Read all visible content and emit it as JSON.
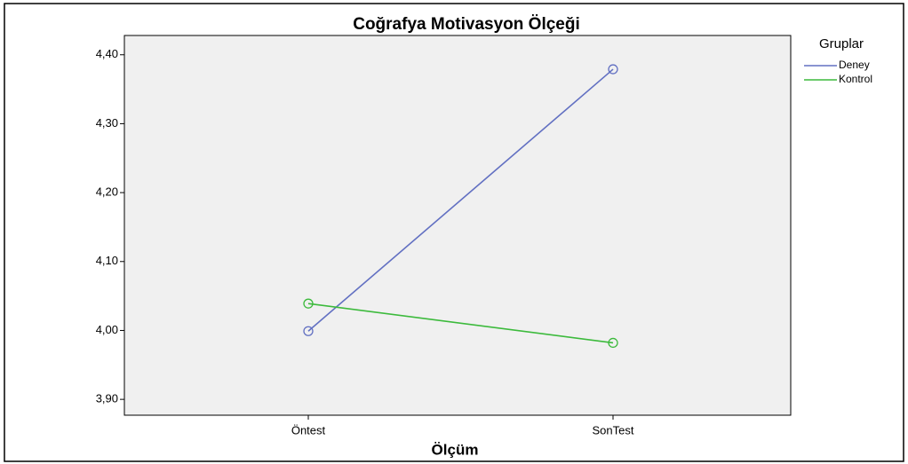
{
  "chart_data": {
    "type": "line",
    "title": "Coğrafya Motivasyon Ölçeği",
    "xlabel": "Ölçüm",
    "categories": [
      "Öntest",
      "SonTest"
    ],
    "legend_title": "Gruplar",
    "legend": "right",
    "series": [
      {
        "name": "Deney",
        "color": "#6270c2",
        "values": [
          3.999,
          4.379
        ]
      },
      {
        "name": "Kontrol",
        "color": "#3cba3c",
        "values": [
          4.039,
          3.982
        ]
      }
    ],
    "ylim": [
      3.877,
      4.428
    ],
    "yticks": [
      {
        "value": 3.9,
        "label": "3,90"
      },
      {
        "value": 4.0,
        "label": "4,00"
      },
      {
        "value": 4.1,
        "label": "4,10"
      },
      {
        "value": 4.2,
        "label": "4,20"
      },
      {
        "value": 4.3,
        "label": "4,30"
      },
      {
        "value": 4.4,
        "label": "4,40"
      }
    ],
    "grid": false
  }
}
